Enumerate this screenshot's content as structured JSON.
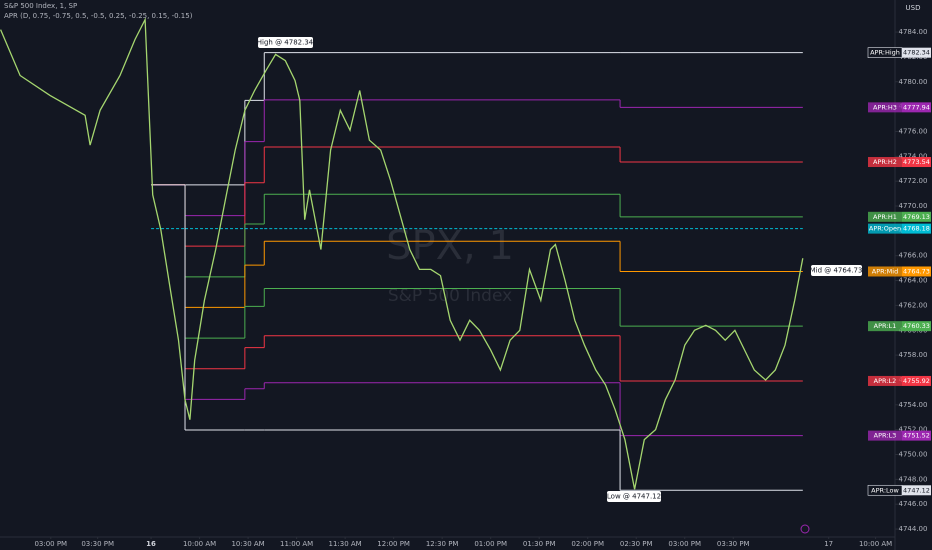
{
  "chart_data": {
    "type": "line",
    "title": "S&P 500 Index, 1, SP",
    "subtitle": "APR (D, 0.75, -0.75, 0.5, -0.5, 0.25, -0.25, 0.15, -0.15)",
    "watermark": "SPX, 1",
    "watermark_sub": "S&P 500 Index",
    "currency": "USD",
    "color": "#a5d66f",
    "x": [
      -93,
      -81,
      -62.5,
      -40.8,
      -37.7,
      -31.5,
      -19.2,
      -9.9,
      -3.7,
      1,
      6,
      12,
      17,
      21,
      24,
      27,
      33,
      40,
      46,
      52,
      58,
      64,
      71,
      77,
      83,
      89,
      92,
      95,
      98,
      105,
      111,
      117,
      123,
      129,
      135,
      142,
      148,
      154,
      160,
      166,
      173,
      179,
      185,
      191,
      197,
      203,
      210,
      216,
      222,
      228,
      234,
      241,
      247,
      250,
      256,
      262,
      268,
      275,
      281,
      287,
      293,
      299,
      305,
      312,
      318,
      324,
      330,
      336,
      343,
      349,
      355,
      361,
      367,
      373,
      380,
      386,
      392,
      398,
      403
    ],
    "values": [
      4784.2,
      4780.5,
      4778.9,
      4777.3,
      4774.9,
      4777.7,
      4780.5,
      4783.4,
      4785.0,
      4770.9,
      4768.1,
      4763.2,
      4759.2,
      4754.4,
      4752.8,
      4757.6,
      4762.4,
      4766.5,
      4770.5,
      4774.5,
      4777.7,
      4779.3,
      4780.9,
      4782.2,
      4781.7,
      4780.1,
      4778.5,
      4768.9,
      4771.3,
      4766.5,
      4774.5,
      4777.7,
      4776.1,
      4779.3,
      4775.3,
      4774.5,
      4772.1,
      4769.3,
      4766.5,
      4764.9,
      4764.9,
      4764.4,
      4760.8,
      4759.2,
      4760.8,
      4760.0,
      4758.4,
      4756.8,
      4759.2,
      4760.0,
      4764.9,
      4762.4,
      4766.5,
      4766.9,
      4764.0,
      4760.8,
      4758.8,
      4756.8,
      4755.6,
      4753.6,
      4751.2,
      4747.2,
      4751.2,
      4752.0,
      4754.4,
      4756.0,
      4758.8,
      4760.0,
      4760.4,
      4760.0,
      4759.2,
      4760.0,
      4758.4,
      4756.8,
      4756.0,
      4756.8,
      4758.8,
      4762.4,
      4765.8
    ],
    "level_edges": [
      0,
      21,
      58,
      70,
      290,
      403
    ],
    "levels": [
      {
        "name": "APR:High",
        "color": "#e0e3eb",
        "values": [
          4771.7,
          4771.7,
          4778.5,
          4782.34,
          4782.34
        ]
      },
      {
        "name": "APR:H3",
        "color": "#9c27b0",
        "values": [
          4771.7,
          4769.23,
          4775.18,
          4778.54,
          4777.94
        ]
      },
      {
        "name": "APR:H2",
        "color": "#f23645",
        "values": [
          4771.7,
          4766.77,
          4771.87,
          4774.75,
          4773.54
        ]
      },
      {
        "name": "APR:H1",
        "color": "#4caf50",
        "values": [
          4771.7,
          4764.3,
          4768.55,
          4770.95,
          4769.13
        ]
      },
      {
        "name": "APR:Open",
        "color": "#00bcd4",
        "dashed": true,
        "values": [
          4768.18,
          4768.18,
          4768.18,
          4768.18,
          4768.18
        ]
      },
      {
        "name": "APR:Mid",
        "color": "#ff9800",
        "values": [
          4771.7,
          4761.84,
          4765.24,
          4767.16,
          4764.73
        ]
      },
      {
        "name": "APR:L1",
        "color": "#4caf50",
        "values": [
          4771.7,
          4759.37,
          4761.92,
          4763.36,
          4760.33
        ]
      },
      {
        "name": "APR:L2",
        "color": "#f23645",
        "values": [
          4771.7,
          4756.9,
          4758.6,
          4759.56,
          4755.92
        ]
      },
      {
        "name": "APR:L3",
        "color": "#9c27b0",
        "values": [
          4771.7,
          4754.44,
          4755.29,
          4755.77,
          4751.52
        ]
      },
      {
        "name": "APR:Low",
        "color": "#e0e3eb",
        "values": [
          4771.7,
          4751.97,
          4751.97,
          4751.97,
          4747.12
        ]
      }
    ],
    "annotations": [
      {
        "text": "High @ 4782.34"
      },
      {
        "text": "Low @ 4747.12"
      },
      {
        "text": "Mid @ 4764.73"
      }
    ],
    "xlim": [
      -93.4,
      460
    ],
    "xticks": [
      {
        "value": -62,
        "label": "03:00 PM"
      },
      {
        "value": -33,
        "label": "03:30 PM"
      },
      0,
      {
        "value": 30,
        "label": "10:00 AM"
      },
      {
        "value": 60,
        "label": "10:30 AM"
      },
      {
        "value": 90,
        "label": "11:00 AM"
      },
      {
        "value": 120,
        "label": "11:30 AM"
      },
      {
        "value": 150,
        "label": "12:00 PM"
      },
      {
        "value": 180,
        "label": "12:30 PM"
      },
      {
        "value": 210,
        "label": "01:00 PM"
      },
      {
        "value": 240,
        "label": "01:30 PM"
      },
      {
        "value": 270,
        "label": "02:00 PM"
      },
      {
        "value": 300,
        "label": "02:30 PM"
      },
      {
        "value": 330,
        "label": "03:00 PM"
      },
      {
        "value": 360,
        "label": "03:30 PM"
      },
      {
        "value": 419,
        "label": "17"
      },
      {
        "value": 448,
        "label": "10:00 AM"
      }
    ],
    "xtick_day_label": "16",
    "ylim": [
      4743.36,
      4786.58
    ],
    "yticks": [
      {
        "value": 4744,
        "label": "4744.00"
      },
      {
        "value": 4746,
        "label": "4746.00"
      },
      {
        "value": 4748,
        "label": "4748.00"
      },
      {
        "value": 4750,
        "label": "4750.00"
      },
      {
        "value": 4752,
        "label": "4752.00"
      },
      {
        "value": 4754,
        "label": "4754.00"
      },
      {
        "value": 4756,
        "label": "4756.00"
      },
      {
        "value": 4758,
        "label": "4758.00"
      },
      {
        "value": 4760,
        "label": "4760.00"
      },
      {
        "value": 4762,
        "label": "4762.00"
      },
      {
        "value": 4764,
        "label": "4764.00"
      },
      {
        "value": 4766,
        "label": "4766.00"
      },
      {
        "value": 4768,
        "label": "4768.00"
      },
      {
        "value": 4770,
        "label": "4770.00"
      },
      {
        "value": 4772,
        "label": "4772.00"
      },
      {
        "value": 4774,
        "label": "4774.00"
      },
      {
        "value": 4776,
        "label": "4776.00"
      },
      {
        "value": 4778,
        "label": "4778.00"
      },
      {
        "value": 4780,
        "label": "4780.00"
      },
      {
        "value": 4782,
        "label": "4782.00"
      },
      {
        "value": 4784,
        "label": "4784.00"
      }
    ]
  }
}
